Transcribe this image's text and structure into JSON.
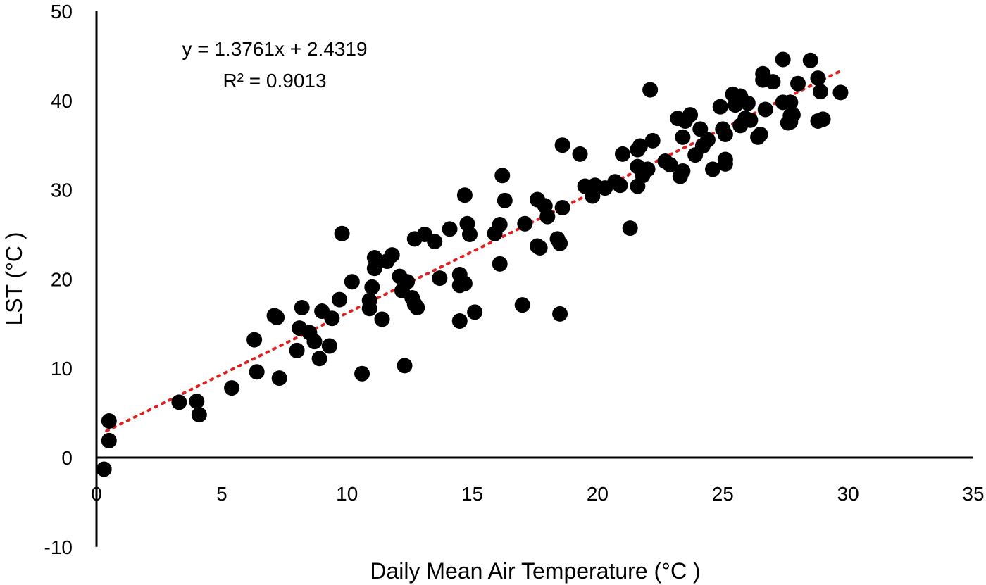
{
  "chart_data": {
    "type": "scatter",
    "xlabel": "Daily Mean Air Temperature (°C )",
    "ylabel": "LST (°C )",
    "xlim": [
      0,
      35
    ],
    "ylim": [
      -10,
      50
    ],
    "x_ticks": [
      0,
      5,
      10,
      15,
      20,
      25,
      30,
      35
    ],
    "y_ticks": [
      -10,
      0,
      10,
      20,
      30,
      40,
      50
    ],
    "grid": false,
    "legend": "none",
    "marker_color": "#000000",
    "trendline": {
      "type": "linear",
      "style": "dotted",
      "color": "#e02020",
      "slope": 1.3761,
      "intercept": 2.4319,
      "x_range": [
        0.4,
        29.7
      ]
    },
    "annotations": [
      "y = 1.3761x + 2.4319",
      "R² = 0.9013"
    ],
    "points": [
      [
        0.3,
        -1.3
      ],
      [
        0.5,
        1.9
      ],
      [
        0.5,
        4.1
      ],
      [
        3.3,
        6.2
      ],
      [
        4.0,
        6.3
      ],
      [
        4.1,
        4.8
      ],
      [
        5.4,
        7.8
      ],
      [
        6.3,
        13.2
      ],
      [
        6.4,
        9.6
      ],
      [
        7.1,
        15.9
      ],
      [
        7.2,
        15.7
      ],
      [
        7.3,
        8.9
      ],
      [
        8.0,
        12.0
      ],
      [
        8.1,
        14.5
      ],
      [
        8.2,
        16.8
      ],
      [
        8.5,
        14.0
      ],
      [
        8.7,
        13.0
      ],
      [
        8.9,
        11.1
      ],
      [
        9.0,
        16.4
      ],
      [
        9.3,
        12.5
      ],
      [
        9.4,
        15.6
      ],
      [
        9.7,
        17.7
      ],
      [
        9.8,
        25.1
      ],
      [
        10.2,
        19.7
      ],
      [
        10.6,
        9.4
      ],
      [
        10.9,
        16.7
      ],
      [
        10.9,
        17.6
      ],
      [
        11.0,
        19.1
      ],
      [
        11.1,
        21.2
      ],
      [
        11.1,
        22.4
      ],
      [
        11.4,
        15.5
      ],
      [
        11.6,
        22.0
      ],
      [
        11.8,
        22.7
      ],
      [
        12.1,
        20.3
      ],
      [
        12.2,
        18.7
      ],
      [
        12.3,
        10.3
      ],
      [
        12.4,
        19.7
      ],
      [
        12.6,
        17.9
      ],
      [
        12.7,
        24.5
      ],
      [
        12.7,
        17.2
      ],
      [
        12.8,
        16.8
      ],
      [
        13.1,
        25.0
      ],
      [
        13.5,
        24.2
      ],
      [
        13.7,
        20.1
      ],
      [
        14.1,
        25.6
      ],
      [
        14.5,
        15.3
      ],
      [
        14.5,
        19.3
      ],
      [
        14.5,
        20.5
      ],
      [
        14.7,
        29.4
      ],
      [
        14.7,
        19.5
      ],
      [
        14.8,
        26.2
      ],
      [
        14.9,
        25.0
      ],
      [
        15.1,
        16.3
      ],
      [
        15.9,
        25.1
      ],
      [
        16.1,
        26.1
      ],
      [
        16.1,
        21.7
      ],
      [
        16.2,
        31.6
      ],
      [
        16.3,
        28.8
      ],
      [
        17.0,
        17.1
      ],
      [
        17.1,
        26.2
      ],
      [
        17.6,
        28.9
      ],
      [
        17.6,
        23.7
      ],
      [
        17.7,
        23.5
      ],
      [
        17.9,
        28.2
      ],
      [
        18.0,
        27.0
      ],
      [
        18.4,
        24.5
      ],
      [
        18.5,
        24.0
      ],
      [
        18.5,
        16.1
      ],
      [
        18.6,
        35.0
      ],
      [
        18.6,
        28.0
      ],
      [
        19.3,
        34.0
      ],
      [
        19.5,
        30.4
      ],
      [
        19.8,
        29.3
      ],
      [
        19.9,
        30.5
      ],
      [
        20.3,
        30.2
      ],
      [
        20.7,
        30.9
      ],
      [
        20.9,
        30.5
      ],
      [
        21.0,
        34.0
      ],
      [
        21.3,
        25.7
      ],
      [
        21.6,
        30.4
      ],
      [
        21.6,
        32.6
      ],
      [
        21.6,
        34.5
      ],
      [
        21.7,
        34.9
      ],
      [
        21.8,
        31.6
      ],
      [
        22.0,
        32.3
      ],
      [
        22.1,
        41.2
      ],
      [
        22.2,
        35.5
      ],
      [
        22.7,
        33.2
      ],
      [
        22.9,
        32.8
      ],
      [
        23.2,
        38.0
      ],
      [
        23.3,
        31.5
      ],
      [
        23.4,
        32.1
      ],
      [
        23.4,
        35.9
      ],
      [
        23.5,
        37.7
      ],
      [
        23.7,
        38.4
      ],
      [
        23.9,
        33.9
      ],
      [
        24.1,
        36.8
      ],
      [
        24.2,
        34.9
      ],
      [
        24.4,
        35.6
      ],
      [
        24.6,
        32.3
      ],
      [
        24.9,
        39.3
      ],
      [
        25.0,
        36.8
      ],
      [
        25.1,
        36.2
      ],
      [
        25.1,
        33.4
      ],
      [
        25.1,
        32.9
      ],
      [
        25.4,
        40.7
      ],
      [
        25.5,
        39.5
      ],
      [
        25.7,
        40.5
      ],
      [
        25.7,
        37.2
      ],
      [
        25.9,
        38.0
      ],
      [
        26.0,
        39.7
      ],
      [
        26.1,
        37.8
      ],
      [
        26.4,
        35.9
      ],
      [
        26.5,
        36.2
      ],
      [
        26.6,
        43.0
      ],
      [
        26.6,
        42.3
      ],
      [
        26.7,
        39.0
      ],
      [
        27.0,
        42.1
      ],
      [
        27.4,
        44.6
      ],
      [
        27.4,
        39.8
      ],
      [
        27.6,
        37.5
      ],
      [
        27.7,
        38.3
      ],
      [
        27.7,
        37.6
      ],
      [
        27.7,
        39.8
      ],
      [
        27.8,
        38.4
      ],
      [
        28.0,
        41.9
      ],
      [
        28.5,
        44.5
      ],
      [
        28.8,
        42.5
      ],
      [
        28.8,
        37.7
      ],
      [
        28.9,
        41.0
      ],
      [
        29.0,
        37.9
      ],
      [
        29.7,
        40.9
      ]
    ]
  }
}
